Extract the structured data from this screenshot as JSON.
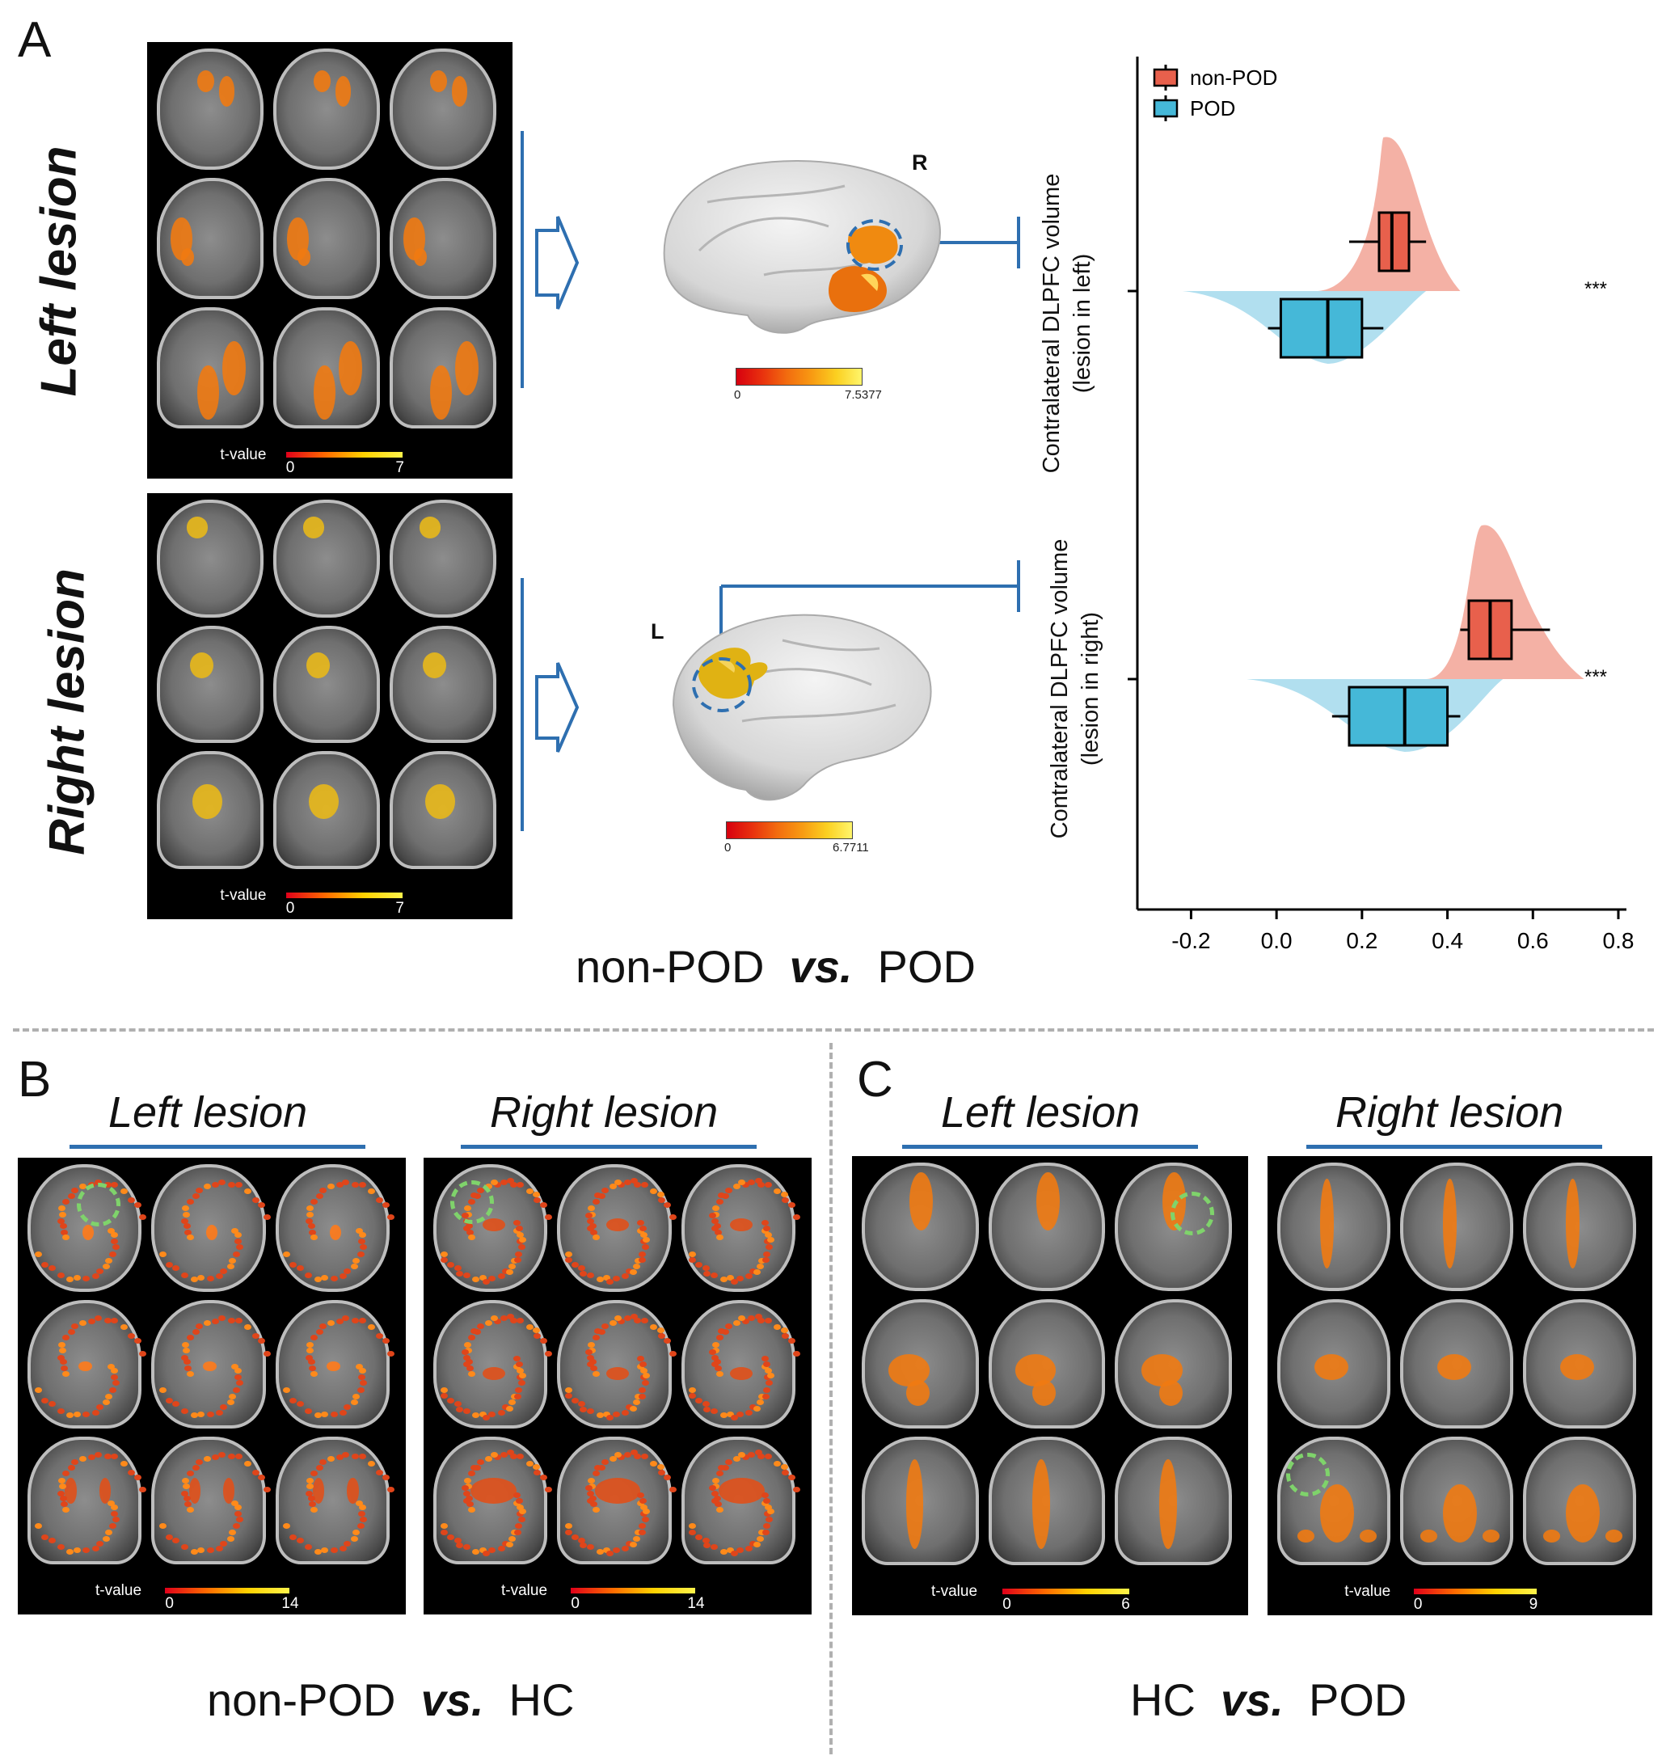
{
  "panelA": {
    "letter": "A",
    "left_label": "Left lesion",
    "right_label": "Right lesion",
    "tvalue_label": "t-value",
    "left_scale": {
      "min": "0",
      "max": "7"
    },
    "right_scale": {
      "min": "0",
      "max": "7"
    },
    "surface_top": {
      "hemisphere": "R",
      "min": "0",
      "max": "7.5377"
    },
    "surface_bottom": {
      "hemisphere": "L",
      "min": "0",
      "max": "6.7711"
    },
    "comparison": {
      "a": "non-POD",
      "vs": "vs.",
      "b": "POD"
    }
  },
  "chart_data": {
    "type": "raincloud",
    "legend": [
      {
        "name": "non-POD",
        "color": "#e8604c"
      },
      {
        "name": "POD",
        "color": "#45b8d8"
      }
    ],
    "legend_position": "top-left",
    "xlim": [
      -0.25,
      0.8
    ],
    "xticks": [
      "-0.2",
      "0.0",
      "0.2",
      "0.4",
      "0.6",
      "0.8"
    ],
    "rows": [
      {
        "label_line1": "Contralateral DLPFC volume",
        "label_line2": "(lesion in left)",
        "significance": "***",
        "non_pod": {
          "whisker_low": 0.17,
          "q1": 0.24,
          "median": 0.27,
          "q3": 0.31,
          "whisker_high": 0.35
        },
        "pod": {
          "whisker_low": -0.02,
          "q1": 0.01,
          "median": 0.12,
          "q3": 0.2,
          "whisker_high": 0.25
        }
      },
      {
        "label_line1": "Contralateral DLPFC volume",
        "label_line2": "(lesion in right)",
        "significance": "***",
        "non_pod": {
          "whisker_low": 0.43,
          "q1": 0.45,
          "median": 0.5,
          "q3": 0.55,
          "whisker_high": 0.64
        },
        "pod": {
          "whisker_low": 0.13,
          "q1": 0.17,
          "median": 0.3,
          "q3": 0.4,
          "whisker_high": 0.43
        }
      }
    ]
  },
  "panelB": {
    "letter": "B",
    "left_title": "Left lesion",
    "right_title": "Right lesion",
    "tvalue_label": "t-value",
    "left_scale": {
      "min": "0",
      "max": "14"
    },
    "right_scale": {
      "min": "0",
      "max": "14"
    },
    "comparison": {
      "a": "non-POD",
      "vs": "vs.",
      "b": "HC"
    }
  },
  "panelC": {
    "letter": "C",
    "left_title": "Left lesion",
    "right_title": "Right lesion",
    "tvalue_label": "t-value",
    "left_scale": {
      "min": "0",
      "max": "6"
    },
    "right_scale": {
      "min": "0",
      "max": "9"
    },
    "comparison": {
      "a": "HC",
      "vs": "vs.",
      "b": "POD"
    }
  },
  "colors": {
    "accent_blue": "#2e6fb0",
    "nonpod": "#e8604c",
    "pod": "#45b8d8",
    "highlight_green": "#7fd36b"
  }
}
